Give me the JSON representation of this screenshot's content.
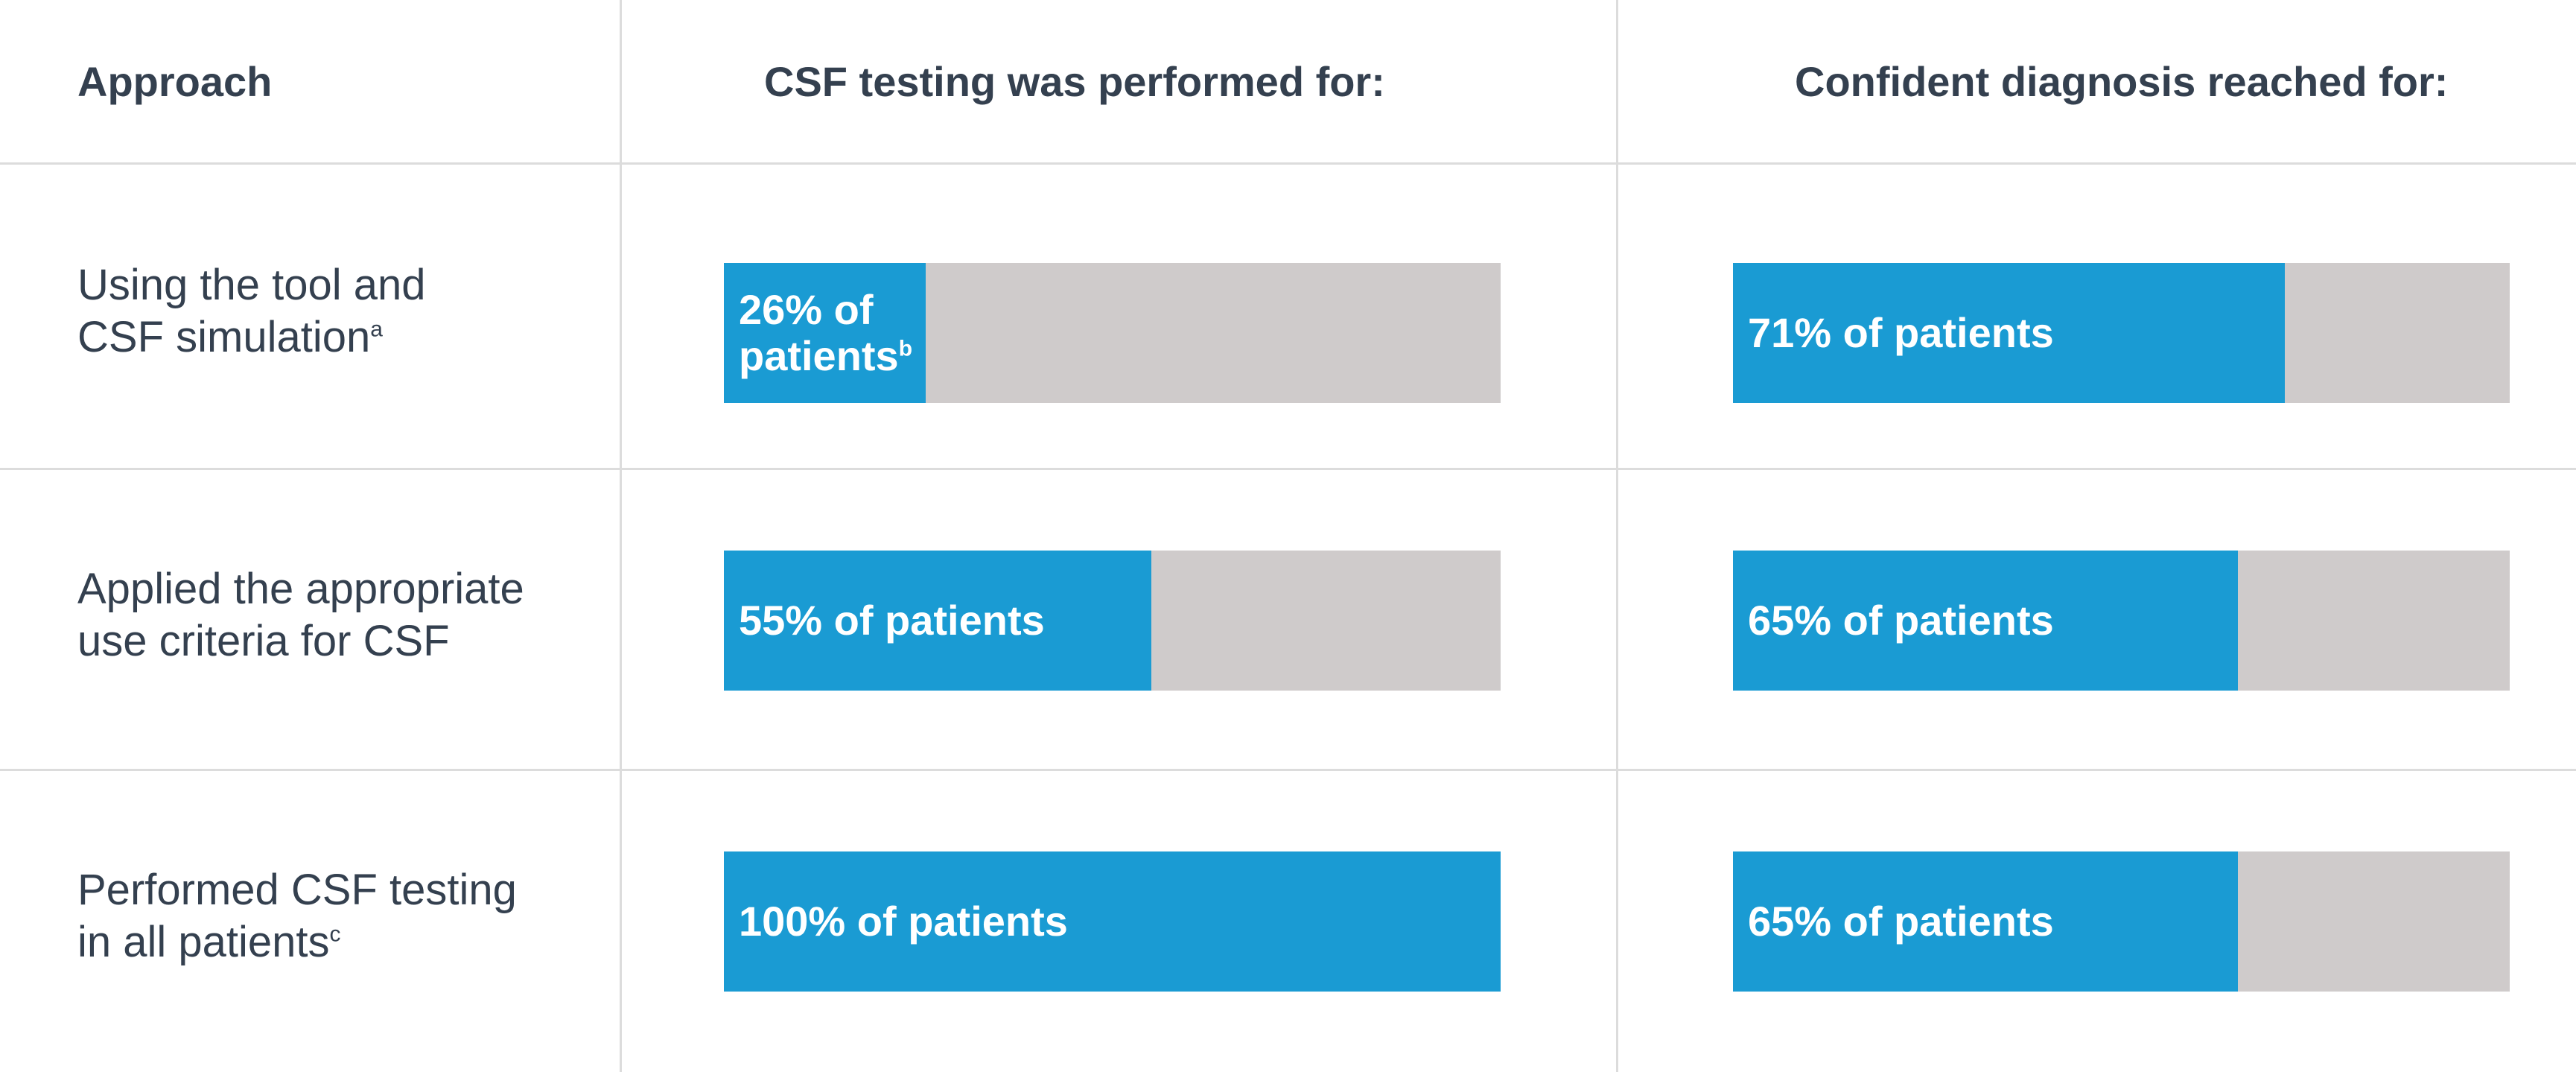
{
  "colors": {
    "fill": "#1a9bd3",
    "track": "#cfcbcb",
    "text": "#34404f",
    "grid": "#dcdcdc"
  },
  "headers": {
    "approach": "Approach",
    "csf_testing": "CSF testing was performed for:",
    "diagnosis": "Confident diagnosis reached for:"
  },
  "rows": [
    {
      "label_line1": "Using the tool and",
      "label_line2": "CSF simulation",
      "label_sup": "a"
    },
    {
      "label_line1": "Applied the appropriate",
      "label_line2": "use criteria for CSF",
      "label_sup": ""
    },
    {
      "label_line1": "Performed CSF testing",
      "label_line2": "in all patients",
      "label_sup": "c"
    }
  ],
  "chart_data": {
    "type": "bar",
    "categories": [
      "Using the tool and CSF simulation",
      "Applied the appropriate use criteria for CSF",
      "Performed CSF testing in all patients"
    ],
    "xlim": [
      0,
      100
    ],
    "series": [
      {
        "name": "CSF testing was performed for:",
        "values": [
          26,
          55,
          100
        ],
        "labels": [
          "26% of patients",
          "55% of patients",
          "100% of patients"
        ],
        "label_sup": [
          "b",
          "",
          ""
        ]
      },
      {
        "name": "Confident diagnosis reached for:",
        "values": [
          71,
          65,
          65
        ],
        "labels": [
          "71% of patients",
          "65% of patients",
          "65% of patients"
        ],
        "label_sup": [
          "",
          "",
          ""
        ]
      }
    ]
  }
}
